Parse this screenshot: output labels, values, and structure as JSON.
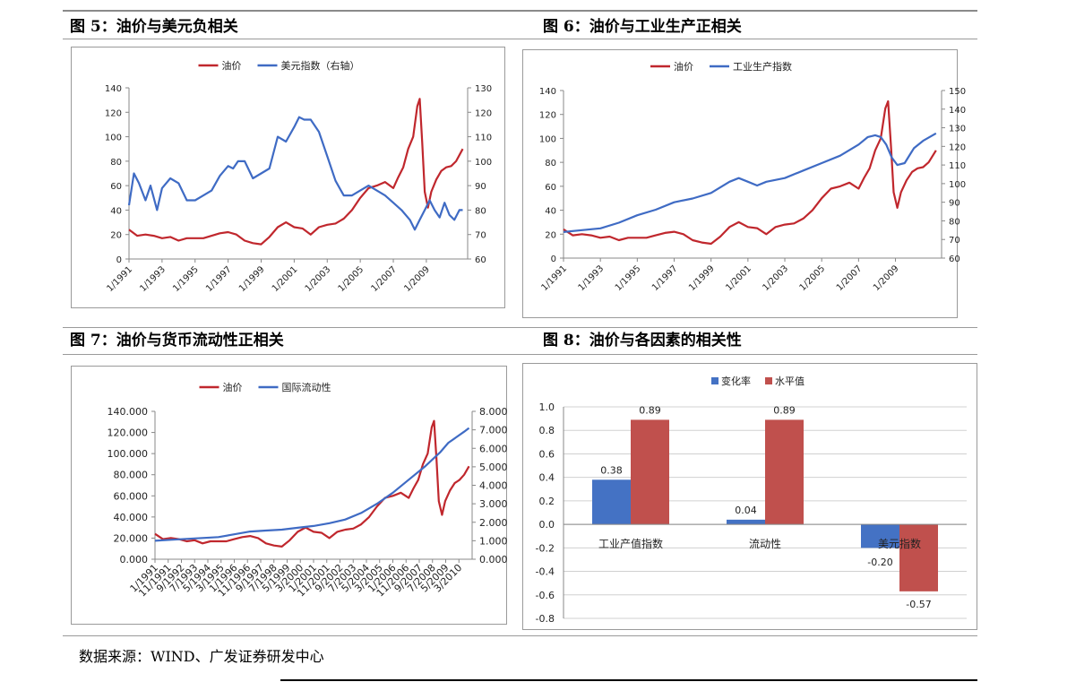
{
  "source": "数据来源：WIND、广发证券研发中心",
  "colors": {
    "oil": "#C0272D",
    "blue": "#3F6BC4",
    "bar_blue": "#4472C4",
    "bar_red": "#C0504D"
  },
  "chart_data": [
    {
      "id": "fig5",
      "type": "line",
      "title": "图 5：油价与美元负相关",
      "x_ticks": [
        "1/1991",
        "1/1993",
        "1/1995",
        "1/1997",
        "1/1999",
        "1/2001",
        "1/2003",
        "1/2005",
        "1/2007",
        "1/2009"
      ],
      "xlim": [
        1991.0,
        2011.5
      ],
      "ylim_left": [
        0,
        140
      ],
      "yticks_left": [
        "0",
        "20",
        "40",
        "60",
        "80",
        "100",
        "120",
        "140"
      ],
      "ylim_right": [
        60,
        130
      ],
      "yticks_right": [
        "60",
        "70",
        "80",
        "90",
        "100",
        "110",
        "120",
        "130"
      ],
      "legend_position": "top-center",
      "series": [
        {
          "name": "油价",
          "axis": "left",
          "color": "#C0272D",
          "x": [
            1991.0,
            1991.5,
            1992,
            1992.5,
            1993,
            1993.5,
            1994,
            1994.5,
            1995,
            1995.5,
            1996,
            1996.5,
            1997,
            1997.5,
            1998,
            1998.5,
            1999,
            1999.5,
            2000,
            2000.5,
            2001,
            2001.5,
            2002,
            2002.5,
            2003,
            2003.5,
            2004,
            2004.5,
            2005,
            2005.5,
            2006,
            2006.5,
            2007,
            2007.3,
            2007.6,
            2007.9,
            2008.2,
            2008.45,
            2008.6,
            2008.75,
            2008.9,
            2009.1,
            2009.3,
            2009.6,
            2009.9,
            2010.2,
            2010.5,
            2010.8,
            2011.2
          ],
          "y": [
            24,
            19,
            20,
            19,
            17,
            18,
            15,
            17,
            17,
            17,
            19,
            21,
            22,
            20,
            15,
            13,
            12,
            18,
            26,
            30,
            26,
            25,
            20,
            26,
            28,
            29,
            33,
            40,
            50,
            58,
            60,
            63,
            58,
            67,
            75,
            90,
            100,
            125,
            131,
            95,
            55,
            42,
            55,
            65,
            72,
            75,
            76,
            80,
            90
          ]
        },
        {
          "name": "美元指数（右轴）",
          "axis": "right",
          "color": "#3F6BC4",
          "x": [
            1991.0,
            1991.3,
            1991.6,
            1992,
            1992.3,
            1992.7,
            1993,
            1993.5,
            1994,
            1994.5,
            1995,
            1995.5,
            1996,
            1996.5,
            1997,
            1997.3,
            1997.6,
            1998,
            1998.5,
            1999,
            1999.5,
            2000,
            2000.5,
            2001,
            2001.3,
            2001.6,
            2002,
            2002.5,
            2003,
            2003.5,
            2004,
            2004.5,
            2005,
            2005.5,
            2006,
            2006.5,
            2007,
            2007.5,
            2008,
            2008.3,
            2008.6,
            2008.9,
            2009.2,
            2009.5,
            2009.8,
            2010.1,
            2010.4,
            2010.7,
            2011.0,
            2011.2
          ],
          "y": [
            82,
            95,
            91,
            84,
            90,
            80,
            89,
            93,
            91,
            84,
            84,
            86,
            88,
            94,
            98,
            97,
            100,
            100,
            93,
            95,
            97,
            110,
            108,
            114,
            118,
            117,
            117,
            112,
            102,
            92,
            86,
            86,
            88,
            90,
            88,
            86,
            83,
            80,
            76,
            72,
            76,
            80,
            84,
            80,
            77,
            83,
            78,
            76,
            80,
            80
          ]
        }
      ]
    },
    {
      "id": "fig6",
      "type": "line",
      "title": "图 6：油价与工业生产正相关",
      "x_ticks": [
        "1/1991",
        "1/1993",
        "1/1995",
        "1/1997",
        "1/1999",
        "1/2001",
        "1/2003",
        "1/2005",
        "1/2007",
        "1/2009"
      ],
      "xlim": [
        1991.0,
        2011.5
      ],
      "ylim_left": [
        0,
        140
      ],
      "yticks_left": [
        "0",
        "20",
        "40",
        "60",
        "80",
        "100",
        "120",
        "140"
      ],
      "ylim_right": [
        60,
        150
      ],
      "yticks_right": [
        "60",
        "70",
        "80",
        "90",
        "100",
        "110",
        "120",
        "130",
        "140",
        "150"
      ],
      "legend_position": "top-center",
      "series": [
        {
          "name": "油价",
          "axis": "left",
          "color": "#C0272D",
          "x": [
            1991.0,
            1991.5,
            1992,
            1992.5,
            1993,
            1993.5,
            1994,
            1994.5,
            1995,
            1995.5,
            1996,
            1996.5,
            1997,
            1997.5,
            1998,
            1998.5,
            1999,
            1999.5,
            2000,
            2000.5,
            2001,
            2001.5,
            2002,
            2002.5,
            2003,
            2003.5,
            2004,
            2004.5,
            2005,
            2005.5,
            2006,
            2006.5,
            2007,
            2007.3,
            2007.6,
            2007.9,
            2008.2,
            2008.45,
            2008.6,
            2008.75,
            2008.9,
            2009.1,
            2009.3,
            2009.6,
            2009.9,
            2010.2,
            2010.5,
            2010.8,
            2011.2
          ],
          "y": [
            24,
            19,
            20,
            19,
            17,
            18,
            15,
            17,
            17,
            17,
            19,
            21,
            22,
            20,
            15,
            13,
            12,
            18,
            26,
            30,
            26,
            25,
            20,
            26,
            28,
            29,
            33,
            40,
            50,
            58,
            60,
            63,
            58,
            67,
            75,
            90,
            100,
            125,
            131,
            95,
            55,
            42,
            55,
            65,
            72,
            75,
            76,
            80,
            90
          ]
        },
        {
          "name": "工业生产指数",
          "axis": "right",
          "color": "#3F6BC4",
          "x": [
            1991.0,
            1992,
            1993,
            1994,
            1995,
            1996,
            1997,
            1998,
            1999,
            2000,
            2000.5,
            2001,
            2001.5,
            2002,
            2003,
            2004,
            2005,
            2006,
            2007,
            2007.5,
            2007.9,
            2008.2,
            2008.5,
            2008.8,
            2009.1,
            2009.5,
            2010,
            2010.5,
            2011.2
          ],
          "y": [
            74,
            75,
            76,
            79,
            83,
            86,
            90,
            92,
            95,
            101,
            103,
            101,
            99,
            101,
            103,
            107,
            111,
            115,
            121,
            125,
            126,
            125,
            121,
            114,
            110,
            111,
            119,
            123,
            127
          ]
        }
      ]
    },
    {
      "id": "fig7",
      "type": "line",
      "title": "图 7：油价与货币流动性正相关",
      "x_ticks": [
        "1/1991",
        "11/1991",
        "9/1992",
        "7/1993",
        "5/1994",
        "3/1995",
        "1/1996",
        "11/1996",
        "9/1997",
        "7/1998",
        "5/1999",
        "3/2000",
        "1/2001",
        "11/2001",
        "9/2002",
        "7/2003",
        "5/2004",
        "3/2005",
        "1/2006",
        "11/2006",
        "9/2007",
        "7/2008",
        "5/2009",
        "3/2010"
      ],
      "xlim": [
        1991.0,
        2011.0
      ],
      "ylim_left": [
        0,
        140
      ],
      "yticks_left": [
        "0.000",
        "20.000",
        "40.000",
        "60.000",
        "80.000",
        "100.000",
        "120.000",
        "140.000"
      ],
      "ylim_right": [
        0,
        8
      ],
      "yticks_right": [
        "0.000",
        "1.000",
        "2.000",
        "3.000",
        "4.000",
        "5.000",
        "6.000",
        "7.000",
        "8.000"
      ],
      "legend_position": "top-center",
      "series": [
        {
          "name": "油价",
          "axis": "left",
          "color": "#C0272D",
          "x": [
            1991.0,
            1991.5,
            1992,
            1992.5,
            1993,
            1993.5,
            1994,
            1994.5,
            1995,
            1995.5,
            1996,
            1996.5,
            1997,
            1997.5,
            1998,
            1998.5,
            1999,
            1999.5,
            2000,
            2000.5,
            2001,
            2001.5,
            2002,
            2002.5,
            2003,
            2003.5,
            2004,
            2004.5,
            2005,
            2005.5,
            2006,
            2006.5,
            2007,
            2007.3,
            2007.6,
            2007.9,
            2008.2,
            2008.45,
            2008.6,
            2008.75,
            2008.9,
            2009.1,
            2009.3,
            2009.6,
            2009.9,
            2010.2,
            2010.5,
            2010.8
          ],
          "y": [
            24,
            19,
            20,
            19,
            17,
            18,
            15,
            17,
            17,
            17,
            19,
            21,
            22,
            20,
            15,
            13,
            12,
            18,
            26,
            30,
            26,
            25,
            20,
            26,
            28,
            29,
            33,
            40,
            50,
            58,
            60,
            63,
            58,
            67,
            75,
            90,
            100,
            125,
            131,
            95,
            55,
            42,
            55,
            65,
            72,
            75,
            80,
            88
          ]
        },
        {
          "name": "国际流动性",
          "axis": "right",
          "color": "#3F6BC4",
          "x": [
            1991.0,
            1992,
            1993,
            1994,
            1995,
            1996,
            1997,
            1998,
            1999,
            2000,
            2001,
            2002,
            2003,
            2004,
            2005,
            2006,
            2007,
            2008,
            2009,
            2009.5,
            2010,
            2010.5,
            2010.8
          ],
          "y": [
            1.0,
            1.05,
            1.1,
            1.15,
            1.2,
            1.35,
            1.5,
            1.55,
            1.6,
            1.7,
            1.8,
            1.95,
            2.15,
            2.5,
            3.0,
            3.6,
            4.3,
            5.0,
            5.8,
            6.3,
            6.6,
            6.9,
            7.1
          ]
        }
      ]
    },
    {
      "id": "fig8",
      "type": "bar",
      "title": "图 8：油价与各因素的相关性",
      "categories": [
        "工业产值指数",
        "流动性",
        "美元指数"
      ],
      "ylim": [
        -0.8,
        1.0
      ],
      "yticks": [
        "1.0",
        "0.8",
        "0.6",
        "0.4",
        "0.2",
        "0.0",
        "-0.2",
        "-0.4",
        "-0.6",
        "-0.8"
      ],
      "legend_position": "top-center",
      "series": [
        {
          "name": "变化率",
          "color": "#4472C4",
          "values": [
            0.38,
            0.04,
            -0.2
          ],
          "labels": [
            "0.38",
            "0.04",
            "-0.20"
          ]
        },
        {
          "name": "水平值",
          "color": "#C0504D",
          "values": [
            0.89,
            0.89,
            -0.57
          ],
          "labels": [
            "0.89",
            "0.89",
            "-0.57"
          ]
        }
      ]
    }
  ]
}
